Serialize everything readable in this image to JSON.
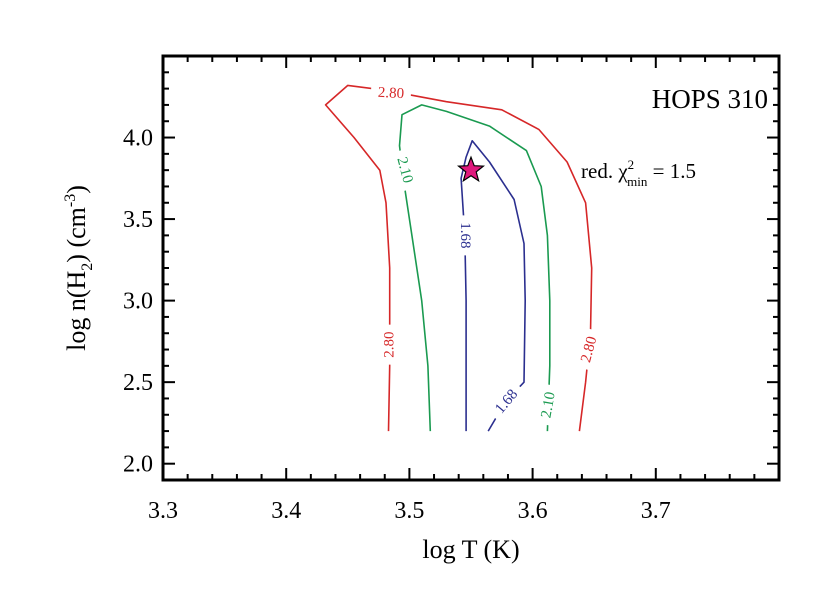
{
  "chart_data": {
    "type": "contour",
    "title": "HOPS 310",
    "xlabel": "log T (K)",
    "ylabel": {
      "prefix": "log n(H",
      "sub": "2",
      "mid": ") (cm",
      "sup": "-3",
      "suffix": ")"
    },
    "xlim": [
      3.3,
      3.8
    ],
    "ylim": [
      1.9,
      4.5
    ],
    "x_ticks": [
      3.3,
      3.4,
      3.5,
      3.6,
      3.7
    ],
    "x_tick_labels": [
      "3.3",
      "3.4",
      "3.5",
      "3.6",
      "3.7"
    ],
    "y_ticks": [
      2.0,
      2.5,
      3.0,
      3.5,
      4.0
    ],
    "y_tick_labels": [
      "2.0",
      "2.5",
      "3.0",
      "3.5",
      "4.0"
    ],
    "annotation": {
      "prefix": "red. χ",
      "sup": "2",
      "sub": "min",
      "suffix": " =  1.5"
    },
    "minimum": {
      "x": 3.55,
      "y": 3.8,
      "marker": "star",
      "color": "#e0197d"
    },
    "contours": [
      {
        "level": "2.80",
        "color": "#d62728",
        "points": [
          [
            3.483,
            2.2
          ],
          [
            3.484,
            2.6
          ],
          [
            3.484,
            3.2
          ],
          [
            3.481,
            3.6
          ],
          [
            3.476,
            3.8
          ],
          [
            3.455,
            4.0
          ],
          [
            3.432,
            4.2
          ],
          [
            3.45,
            4.32
          ],
          [
            3.48,
            4.29
          ],
          [
            3.53,
            4.22
          ],
          [
            3.575,
            4.17
          ],
          [
            3.605,
            4.05
          ],
          [
            3.628,
            3.85
          ],
          [
            3.643,
            3.6
          ],
          [
            3.648,
            3.2
          ],
          [
            3.647,
            2.8
          ],
          [
            3.643,
            2.5
          ],
          [
            3.638,
            2.2
          ]
        ],
        "labels": [
          {
            "text": "2.80",
            "at": [
              3.485,
              4.27
            ],
            "angle": 3
          },
          {
            "text": "2.80",
            "at": [
              3.484,
              2.73
            ],
            "angle": -90
          },
          {
            "text": "2.80",
            "at": [
              3.646,
              2.7
            ],
            "angle": -75
          }
        ]
      },
      {
        "level": "2.10",
        "color": "#1a9a50",
        "points": [
          [
            3.517,
            2.2
          ],
          [
            3.515,
            2.6
          ],
          [
            3.51,
            3.0
          ],
          [
            3.502,
            3.4
          ],
          [
            3.496,
            3.7
          ],
          [
            3.492,
            3.95
          ],
          [
            3.494,
            4.14
          ],
          [
            3.51,
            4.2
          ],
          [
            3.53,
            4.16
          ],
          [
            3.565,
            4.07
          ],
          [
            3.595,
            3.92
          ],
          [
            3.607,
            3.7
          ],
          [
            3.612,
            3.4
          ],
          [
            3.614,
            3.0
          ],
          [
            3.614,
            2.6
          ],
          [
            3.612,
            2.2
          ]
        ],
        "labels": [
          {
            "text": "2.10",
            "at": [
              3.496,
              3.8
            ],
            "angle": 75
          },
          {
            "text": "2.10",
            "at": [
              3.613,
              2.36
            ],
            "angle": -80
          }
        ]
      },
      {
        "level": "1.68",
        "color": "#2b2f8f",
        "points": [
          [
            3.546,
            2.2
          ],
          [
            3.546,
            2.6
          ],
          [
            3.546,
            3.0
          ],
          [
            3.545,
            3.4
          ],
          [
            3.542,
            3.75
          ],
          [
            3.546,
            3.88
          ],
          [
            3.551,
            3.98
          ],
          [
            3.565,
            3.85
          ],
          [
            3.585,
            3.62
          ],
          [
            3.593,
            3.35
          ],
          [
            3.594,
            3.0
          ],
          [
            3.593,
            2.5
          ],
          [
            3.578,
            2.38
          ],
          [
            3.564,
            2.2
          ]
        ],
        "labels": [
          {
            "text": "1.68",
            "at": [
              3.545,
              3.4
            ],
            "angle": 90
          },
          {
            "text": "1.68",
            "at": [
              3.579,
              2.38
            ],
            "angle": -50
          }
        ]
      }
    ]
  }
}
